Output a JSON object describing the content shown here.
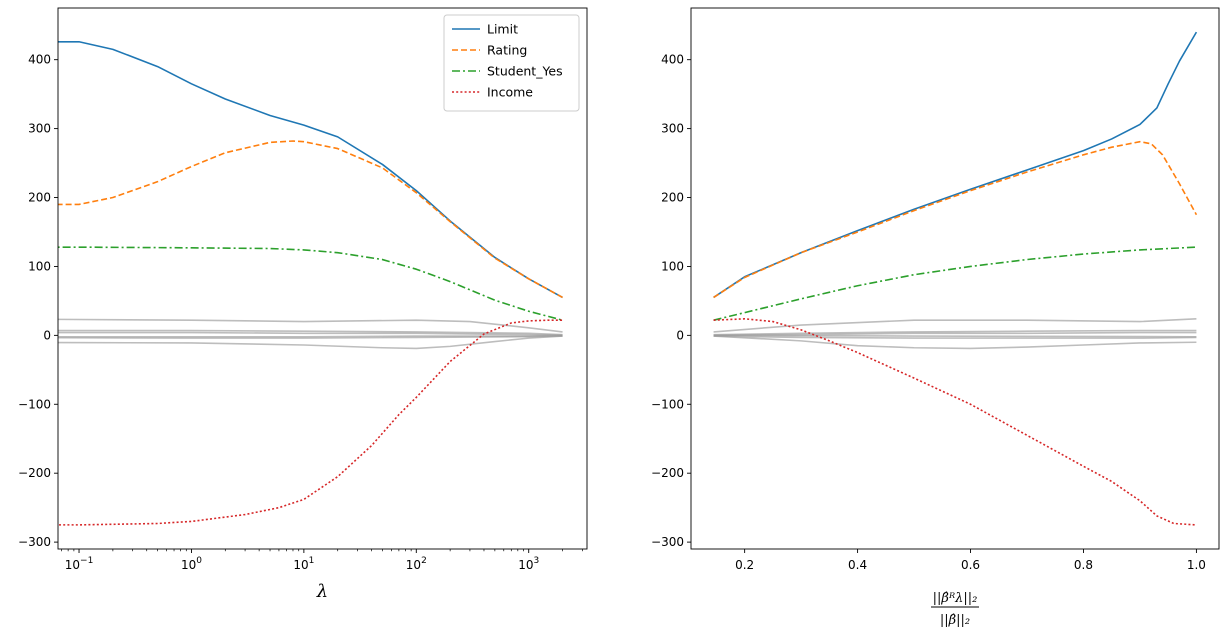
{
  "chart_data": [
    {
      "type": "line",
      "xscale": "log",
      "xlim": [
        0.065,
        3300
      ],
      "ylim": [
        -310,
        475
      ],
      "xticks": [
        {
          "value": 0.1,
          "base": "10",
          "exp": "−1"
        },
        {
          "value": 1,
          "base": "10",
          "exp": "0"
        },
        {
          "value": 10,
          "base": "10",
          "exp": "1"
        },
        {
          "value": 100,
          "base": "10",
          "exp": "2"
        },
        {
          "value": 1000,
          "base": "10",
          "exp": "3"
        }
      ],
      "yticks": [
        {
          "value": -300,
          "label": "−300"
        },
        {
          "value": -200,
          "label": "−200"
        },
        {
          "value": -100,
          "label": "−100"
        },
        {
          "value": 0,
          "label": "0"
        },
        {
          "value": 100,
          "label": "100"
        },
        {
          "value": 200,
          "label": "200"
        },
        {
          "value": 300,
          "label": "300"
        },
        {
          "value": 400,
          "label": "400"
        }
      ],
      "xlabel": "λ",
      "legend": {
        "position": "upper right",
        "entries": [
          "Limit",
          "Rating",
          "Student_Yes",
          "Income"
        ]
      },
      "series": [
        {
          "name": "Limit",
          "color": "#1f77b4",
          "dash": "solid",
          "x": [
            0.01,
            0.1,
            0.2,
            0.5,
            1,
            2,
            5,
            10,
            20,
            50,
            100,
            200,
            500,
            1000,
            2000
          ],
          "y": [
            426,
            426,
            415,
            390,
            365,
            343,
            319,
            305,
            288,
            248,
            210,
            166,
            113,
            82,
            55
          ]
        },
        {
          "name": "Rating",
          "color": "#ff7f0e",
          "dash": "dashed",
          "x": [
            0.01,
            0.1,
            0.2,
            0.5,
            1,
            2,
            5,
            8,
            10,
            20,
            50,
            100,
            200,
            500,
            1000,
            2000
          ],
          "y": [
            190,
            190,
            200,
            223,
            245,
            265,
            280,
            282,
            281,
            271,
            243,
            207,
            165,
            112,
            82,
            55
          ]
        },
        {
          "name": "Student_Yes",
          "color": "#2ca02c",
          "dash": "dashdot",
          "x": [
            0.01,
            0.1,
            1,
            5,
            10,
            20,
            50,
            100,
            200,
            500,
            1000,
            2000
          ],
          "y": [
            128,
            128,
            127,
            126,
            124,
            120,
            110,
            96,
            78,
            51,
            35,
            22
          ]
        },
        {
          "name": "Income",
          "color": "#d62728",
          "dash": "dotted",
          "x": [
            0.01,
            0.1,
            0.5,
            1,
            3,
            6,
            10,
            20,
            40,
            70,
            100,
            200,
            400,
            700,
            1000,
            1500,
            2000
          ],
          "y": [
            -275,
            -275,
            -273,
            -270,
            -260,
            -250,
            -238,
            -205,
            -160,
            -115,
            -90,
            -38,
            2,
            18,
            21,
            22,
            22
          ]
        },
        {
          "name": "",
          "color": "#999999",
          "alpha": 0.65,
          "x": [
            0.01,
            1,
            10,
            100,
            300,
            1000,
            2000
          ],
          "y": [
            24,
            22,
            20,
            22,
            20,
            11,
            5
          ]
        },
        {
          "name": "",
          "color": "#999999",
          "alpha": 0.65,
          "x": [
            0.01,
            1,
            10,
            100,
            1000,
            2000
          ],
          "y": [
            7,
            7,
            6,
            5,
            3,
            1
          ]
        },
        {
          "name": "",
          "color": "#999999",
          "alpha": 0.65,
          "x": [
            0.01,
            1,
            10,
            100,
            1000,
            2000
          ],
          "y": [
            4,
            4,
            3,
            3,
            1,
            0
          ]
        },
        {
          "name": "",
          "color": "#999999",
          "alpha": 0.65,
          "x": [
            0.01,
            1,
            10,
            100,
            1000,
            2000
          ],
          "y": [
            -2,
            -2,
            -2,
            -1,
            -1,
            0
          ]
        },
        {
          "name": "",
          "color": "#999999",
          "alpha": 0.65,
          "x": [
            0.01,
            1,
            10,
            100,
            1000,
            2000
          ],
          "y": [
            -3,
            -4,
            -4,
            -3,
            -2,
            -1
          ]
        },
        {
          "name": "",
          "color": "#999999",
          "alpha": 0.65,
          "x": [
            0.01,
            1,
            10,
            50,
            100,
            200,
            500,
            1000,
            2000
          ],
          "y": [
            -10,
            -11,
            -14,
            -18,
            -19,
            -16,
            -9,
            -4,
            -1
          ]
        }
      ]
    },
    {
      "type": "line",
      "xscale": "linear",
      "xlim": [
        0.105,
        1.04
      ],
      "ylim": [
        -310,
        475
      ],
      "xticks": [
        {
          "value": 0.2,
          "label": "0.2"
        },
        {
          "value": 0.4,
          "label": "0.4"
        },
        {
          "value": 0.6,
          "label": "0.6"
        },
        {
          "value": 0.8,
          "label": "0.8"
        },
        {
          "value": 1.0,
          "label": "1.0"
        }
      ],
      "yticks": [
        {
          "value": -300,
          "label": "−300"
        },
        {
          "value": -200,
          "label": "−200"
        },
        {
          "value": -100,
          "label": "−100"
        },
        {
          "value": 0,
          "label": "0"
        },
        {
          "value": 100,
          "label": "100"
        },
        {
          "value": 200,
          "label": "200"
        },
        {
          "value": 300,
          "label": "300"
        },
        {
          "value": 400,
          "label": "400"
        }
      ],
      "xlabel": {
        "numerator": "||β̂ᴿλ||₂",
        "denominator": "||β̂||₂"
      },
      "series": [
        {
          "name": "Limit",
          "color": "#1f77b4",
          "dash": "solid",
          "x": [
            0.145,
            0.2,
            0.3,
            0.4,
            0.5,
            0.6,
            0.7,
            0.8,
            0.85,
            0.9,
            0.93,
            0.95,
            0.97,
            1.0
          ],
          "y": [
            55,
            85,
            120,
            152,
            183,
            212,
            240,
            268,
            285,
            306,
            330,
            365,
            398,
            440
          ]
        },
        {
          "name": "Rating",
          "color": "#ff7f0e",
          "dash": "dashed",
          "x": [
            0.145,
            0.2,
            0.3,
            0.4,
            0.5,
            0.6,
            0.7,
            0.8,
            0.85,
            0.9,
            0.92,
            0.94,
            0.97,
            1.0
          ],
          "y": [
            55,
            84,
            120,
            150,
            181,
            210,
            237,
            262,
            273,
            281,
            278,
            262,
            220,
            175
          ]
        },
        {
          "name": "Student_Yes",
          "color": "#2ca02c",
          "dash": "dashdot",
          "x": [
            0.145,
            0.2,
            0.3,
            0.4,
            0.5,
            0.6,
            0.7,
            0.8,
            0.9,
            1.0
          ],
          "y": [
            22,
            33,
            53,
            72,
            88,
            100,
            110,
            118,
            124,
            128
          ]
        },
        {
          "name": "Income",
          "color": "#d62728",
          "dash": "dotted",
          "x": [
            0.145,
            0.2,
            0.25,
            0.3,
            0.35,
            0.4,
            0.5,
            0.6,
            0.7,
            0.8,
            0.85,
            0.9,
            0.93,
            0.96,
            1.0
          ],
          "y": [
            22,
            24,
            20,
            8,
            -8,
            -25,
            -62,
            -100,
            -145,
            -190,
            -212,
            -240,
            -262,
            -273,
            -275
          ]
        },
        {
          "name": "",
          "color": "#999999",
          "alpha": 0.65,
          "x": [
            0.145,
            0.3,
            0.5,
            0.7,
            0.9,
            1.0
          ],
          "y": [
            5,
            15,
            22,
            22,
            20,
            24
          ]
        },
        {
          "name": "",
          "color": "#999999",
          "alpha": 0.65,
          "x": [
            0.145,
            0.3,
            0.5,
            0.7,
            0.9,
            1.0
          ],
          "y": [
            1,
            3,
            5,
            6,
            7,
            7
          ]
        },
        {
          "name": "",
          "color": "#999999",
          "alpha": 0.65,
          "x": [
            0.145,
            0.3,
            0.5,
            0.7,
            0.9,
            1.0
          ],
          "y": [
            0,
            1,
            3,
            3,
            4,
            4
          ]
        },
        {
          "name": "",
          "color": "#999999",
          "alpha": 0.65,
          "x": [
            0.145,
            0.5,
            1.0
          ],
          "y": [
            0,
            -1,
            -2
          ]
        },
        {
          "name": "",
          "color": "#999999",
          "alpha": 0.65,
          "x": [
            0.145,
            0.3,
            0.5,
            0.7,
            0.9,
            1.0
          ],
          "y": [
            -1,
            -3,
            -4,
            -4,
            -4,
            -3
          ]
        },
        {
          "name": "",
          "color": "#999999",
          "alpha": 0.65,
          "x": [
            0.145,
            0.3,
            0.4,
            0.5,
            0.6,
            0.7,
            0.8,
            0.9,
            1.0
          ],
          "y": [
            -1,
            -8,
            -15,
            -18,
            -19,
            -17,
            -14,
            -11,
            -10
          ]
        }
      ]
    }
  ]
}
